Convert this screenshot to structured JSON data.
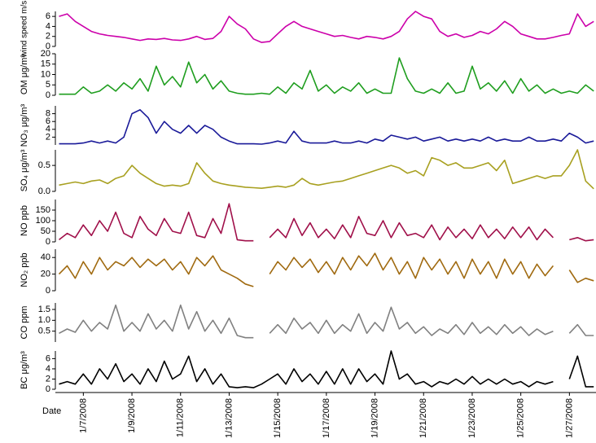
{
  "chart_data": {
    "type": "line",
    "xlabel": "Date",
    "categories": [
      null,
      null,
      null,
      "1/7/2008",
      null,
      null,
      null,
      null,
      null,
      "1/9/2008",
      null,
      null,
      null,
      null,
      null,
      "1/11/2008",
      null,
      null,
      null,
      null,
      null,
      "1/13/2008",
      null,
      null,
      null,
      null,
      null,
      "1/15/2008",
      null,
      null,
      null,
      null,
      null,
      "1/17/2008",
      null,
      null,
      null,
      null,
      null,
      "1/19/2008",
      null,
      null,
      null,
      null,
      null,
      "1/21/2008",
      null,
      null,
      null,
      null,
      null,
      "1/23/2008",
      null,
      null,
      null,
      null,
      null,
      "1/25/2008",
      null,
      null,
      null,
      null,
      null,
      "1/27/2008",
      null,
      null,
      null
    ],
    "panels": [
      {
        "name": "wind speed m/s",
        "color": "#cc00aa",
        "ylim": [
          0,
          7
        ],
        "yticks": [
          0,
          2,
          4,
          6
        ],
        "values": [
          6,
          6.5,
          5,
          4,
          3,
          2.5,
          2.2,
          2,
          1.8,
          1.5,
          1.2,
          1.5,
          1.4,
          1.6,
          1.3,
          1.2,
          1.5,
          2,
          1.4,
          1.6,
          3,
          6,
          4.5,
          3.5,
          1.5,
          0.8,
          1,
          2.5,
          4,
          5,
          4,
          3.5,
          3,
          2.5,
          2,
          2.2,
          1.8,
          1.5,
          2,
          1.8,
          1.5,
          2,
          3,
          5.5,
          7,
          6,
          5.5,
          3,
          2,
          2.5,
          1.8,
          2.2,
          3,
          2.5,
          3.5,
          5,
          4,
          2.5,
          2,
          1.5,
          1.5,
          1.8,
          2.2,
          2.5,
          6.5,
          4,
          5
        ]
      },
      {
        "name": "OM μg/m³",
        "color": "#1f9e1f",
        "ylim": [
          0,
          20
        ],
        "yticks": [
          0,
          5,
          10,
          15,
          20
        ],
        "values": [
          0.5,
          0.5,
          0.5,
          4,
          1,
          2,
          5,
          2,
          6,
          3,
          8,
          2,
          14,
          5,
          9,
          4,
          16,
          6,
          10,
          3,
          7,
          2,
          1,
          0.5,
          0.5,
          1,
          0.5,
          4,
          1,
          6,
          3,
          12,
          2,
          5,
          1,
          4,
          2,
          6,
          1,
          3,
          1,
          1,
          18,
          8,
          2,
          1,
          3,
          1,
          6,
          1,
          2,
          14,
          3,
          6,
          2,
          7,
          1,
          8,
          2,
          5,
          1,
          3,
          1,
          2,
          1,
          5,
          2
        ]
      },
      {
        "name": "NO₃ μg/m³",
        "color": "#1a1a99",
        "ylim": [
          0,
          10
        ],
        "yticks": [
          2,
          4,
          6,
          8
        ],
        "values": [
          0.3,
          0.3,
          0.3,
          0.5,
          1,
          0.5,
          1,
          0.5,
          2,
          8,
          9,
          7,
          3,
          6,
          4,
          3,
          5,
          3,
          5,
          4,
          2,
          1,
          0.3,
          0.3,
          0.3,
          0.2,
          0.5,
          1,
          0.5,
          3.5,
          1,
          0.5,
          0.5,
          0.5,
          1,
          0.5,
          0.5,
          1,
          0.5,
          1.5,
          1,
          2.5,
          2,
          1.5,
          2,
          1,
          1.5,
          2,
          1,
          1.5,
          1,
          1.5,
          1,
          2,
          1,
          1.5,
          1,
          1,
          2,
          1,
          1,
          1.5,
          1,
          3,
          2,
          0.5,
          1
        ]
      },
      {
        "name": "SO₄ μg/m³",
        "color": "#a8a020",
        "ylim": [
          0,
          0.8
        ],
        "yticks": [
          {
            "value": 0,
            "label": "0.0"
          },
          0.5
        ],
        "values": [
          0.12,
          0.15,
          0.18,
          0.15,
          0.2,
          0.22,
          0.15,
          0.25,
          0.3,
          0.5,
          0.35,
          0.25,
          0.15,
          0.1,
          0.12,
          0.1,
          0.15,
          0.55,
          0.35,
          0.2,
          0.15,
          0.12,
          0.1,
          0.08,
          0.07,
          0.06,
          0.08,
          0.1,
          0.08,
          0.12,
          0.25,
          0.15,
          0.12,
          0.15,
          0.18,
          0.2,
          0.25,
          0.3,
          0.35,
          0.4,
          0.45,
          0.5,
          0.45,
          0.35,
          0.4,
          0.3,
          0.65,
          0.6,
          0.5,
          0.55,
          0.45,
          0.45,
          0.5,
          0.55,
          0.4,
          0.6,
          0.15,
          0.2,
          0.25,
          0.3,
          0.25,
          0.3,
          0.3,
          0.5,
          0.8,
          0.2,
          0.05
        ]
      },
      {
        "name": "NO ppb",
        "color": "#a0104a",
        "ylim": [
          0,
          200
        ],
        "yticks": [
          0,
          50,
          100,
          150
        ],
        "values": [
          10,
          40,
          20,
          80,
          30,
          100,
          50,
          140,
          40,
          20,
          120,
          60,
          30,
          110,
          50,
          40,
          140,
          30,
          20,
          110,
          40,
          180,
          10,
          5,
          5,
          null,
          20,
          60,
          20,
          110,
          30,
          90,
          20,
          60,
          15,
          80,
          20,
          120,
          40,
          30,
          100,
          20,
          90,
          30,
          40,
          20,
          80,
          10,
          70,
          20,
          60,
          15,
          80,
          20,
          60,
          15,
          70,
          20,
          70,
          10,
          60,
          20,
          null,
          10,
          20,
          5,
          10
        ]
      },
      {
        "name": "NO₂ ppb",
        "color": "#a06a10",
        "ylim": [
          0,
          50
        ],
        "yticks": [
          0,
          20,
          40
        ],
        "values": [
          20,
          30,
          15,
          35,
          20,
          40,
          25,
          35,
          30,
          40,
          28,
          38,
          30,
          38,
          25,
          35,
          20,
          40,
          30,
          42,
          25,
          20,
          15,
          8,
          5,
          null,
          20,
          35,
          25,
          40,
          28,
          38,
          22,
          35,
          20,
          40,
          25,
          42,
          30,
          45,
          25,
          40,
          20,
          35,
          15,
          40,
          25,
          38,
          20,
          35,
          15,
          38,
          20,
          35,
          15,
          38,
          20,
          35,
          15,
          32,
          18,
          30,
          null,
          25,
          10,
          15,
          12
        ]
      },
      {
        "name": "CO ppm",
        "color": "#808080",
        "ylim": [
          0,
          1.8
        ],
        "yticks": [
          0.5,
          {
            "value": 1,
            "label": "1.0"
          },
          1.5
        ],
        "values": [
          0.4,
          0.6,
          0.45,
          1.0,
          0.5,
          0.9,
          0.6,
          1.7,
          0.5,
          0.9,
          0.5,
          1.3,
          0.6,
          1.0,
          0.5,
          1.7,
          0.6,
          1.4,
          0.5,
          1.0,
          0.4,
          1.1,
          0.3,
          0.2,
          0.2,
          null,
          0.4,
          0.8,
          0.4,
          1.1,
          0.6,
          0.9,
          0.4,
          1.0,
          0.4,
          0.8,
          0.5,
          1.3,
          0.4,
          0.9,
          0.5,
          1.6,
          0.6,
          0.9,
          0.4,
          0.7,
          0.3,
          0.6,
          0.4,
          0.8,
          0.35,
          0.9,
          0.4,
          0.7,
          0.35,
          0.8,
          0.4,
          0.7,
          0.3,
          0.6,
          0.35,
          0.5,
          null,
          0.4,
          0.8,
          0.3,
          0.3
        ]
      },
      {
        "name": "BC μg/m³",
        "color": "#000000",
        "ylim": [
          0,
          7.5
        ],
        "yticks": [
          0,
          2,
          4,
          6
        ],
        "values": [
          1,
          1.5,
          1,
          3,
          1,
          4,
          2,
          5,
          1.5,
          3,
          1,
          4,
          1.5,
          5.5,
          2,
          3,
          6.5,
          1.5,
          4,
          1,
          3,
          0.5,
          0.3,
          0.5,
          0.3,
          1,
          2,
          3,
          1,
          4,
          1.5,
          3,
          1,
          3.5,
          1,
          4,
          1,
          4,
          1.5,
          3,
          1,
          7.5,
          2,
          3,
          1,
          1.5,
          0.5,
          1.5,
          1,
          2,
          1,
          2.5,
          1,
          2,
          1,
          2,
          1,
          1.5,
          0.5,
          1.5,
          1,
          1.5,
          null,
          2,
          6.5,
          0.5,
          0.5
        ]
      }
    ]
  }
}
